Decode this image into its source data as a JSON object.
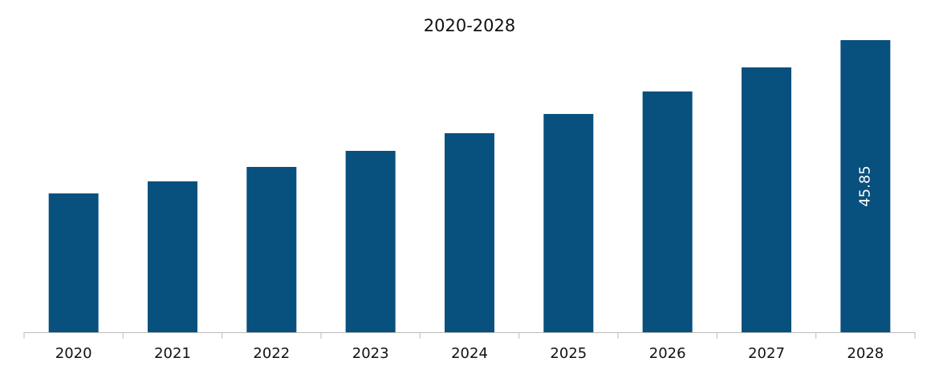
{
  "chart_data": {
    "type": "bar",
    "title": "2020-2028",
    "categories": [
      "2020",
      "2021",
      "2022",
      "2023",
      "2024",
      "2025",
      "2026",
      "2027",
      "2028"
    ],
    "values": [
      21.79,
      23.68,
      25.95,
      28.47,
      31.24,
      34.26,
      37.79,
      41.57,
      45.85
    ],
    "value_labels": [
      null,
      null,
      null,
      null,
      null,
      null,
      null,
      null,
      "45.85"
    ],
    "color": "#08507e"
  }
}
